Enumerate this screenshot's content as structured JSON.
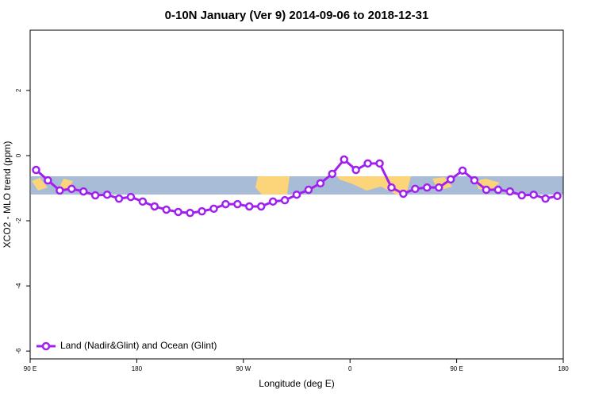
{
  "chart_data": {
    "type": "line",
    "title": "0-10N January (Ver 9)   2014-09-06 to 2018-12-31",
    "x_label": "Longitude (deg E)",
    "y_label": "XCO2 - MLO trend (ppm)",
    "x": [
      95,
      105,
      115,
      125,
      135,
      145,
      155,
      165,
      175,
      185,
      195,
      205,
      215,
      225,
      235,
      245,
      255,
      265,
      275,
      285,
      295,
      305,
      315,
      325,
      335,
      345,
      355,
      365,
      375,
      385,
      395,
      405,
      415,
      425,
      435,
      445,
      455,
      465,
      475,
      485,
      495,
      505,
      515,
      525,
      535
    ],
    "series": [
      {
        "name": "Land (Nadir&Glint) and Ocean (Glint)",
        "color": "#a020f0",
        "values": [
          -0.44,
          -0.76,
          -1.07,
          -1.02,
          -1.1,
          -1.22,
          -1.2,
          -1.32,
          -1.27,
          -1.41,
          -1.56,
          -1.66,
          -1.73,
          -1.76,
          -1.71,
          -1.63,
          -1.49,
          -1.49,
          -1.56,
          -1.56,
          -1.41,
          -1.37,
          -1.2,
          -1.05,
          -0.85,
          -0.56,
          -0.12,
          -0.44,
          -0.24,
          -0.24,
          -0.98,
          -1.17,
          -1.02,
          -0.98,
          -0.98,
          -0.73,
          -0.46,
          -0.76,
          -1.05,
          -1.05,
          -1.1,
          -1.22,
          -1.2,
          -1.32,
          -1.24
        ]
      }
    ],
    "xlim": [
      90,
      540
    ],
    "xticks": [
      {
        "value": 90,
        "label": "90 E"
      },
      180,
      {
        "value": 270,
        "label": "90 W"
      },
      {
        "value": 360,
        "label": "0"
      },
      {
        "value": 450,
        "label": "90 E"
      },
      {
        "value": 540,
        "label": "180"
      }
    ],
    "ylim": [
      -6.24,
      3.85
    ],
    "yticks": [
      -6,
      -4,
      -2,
      0,
      2
    ],
    "legend": "bottom-left"
  }
}
